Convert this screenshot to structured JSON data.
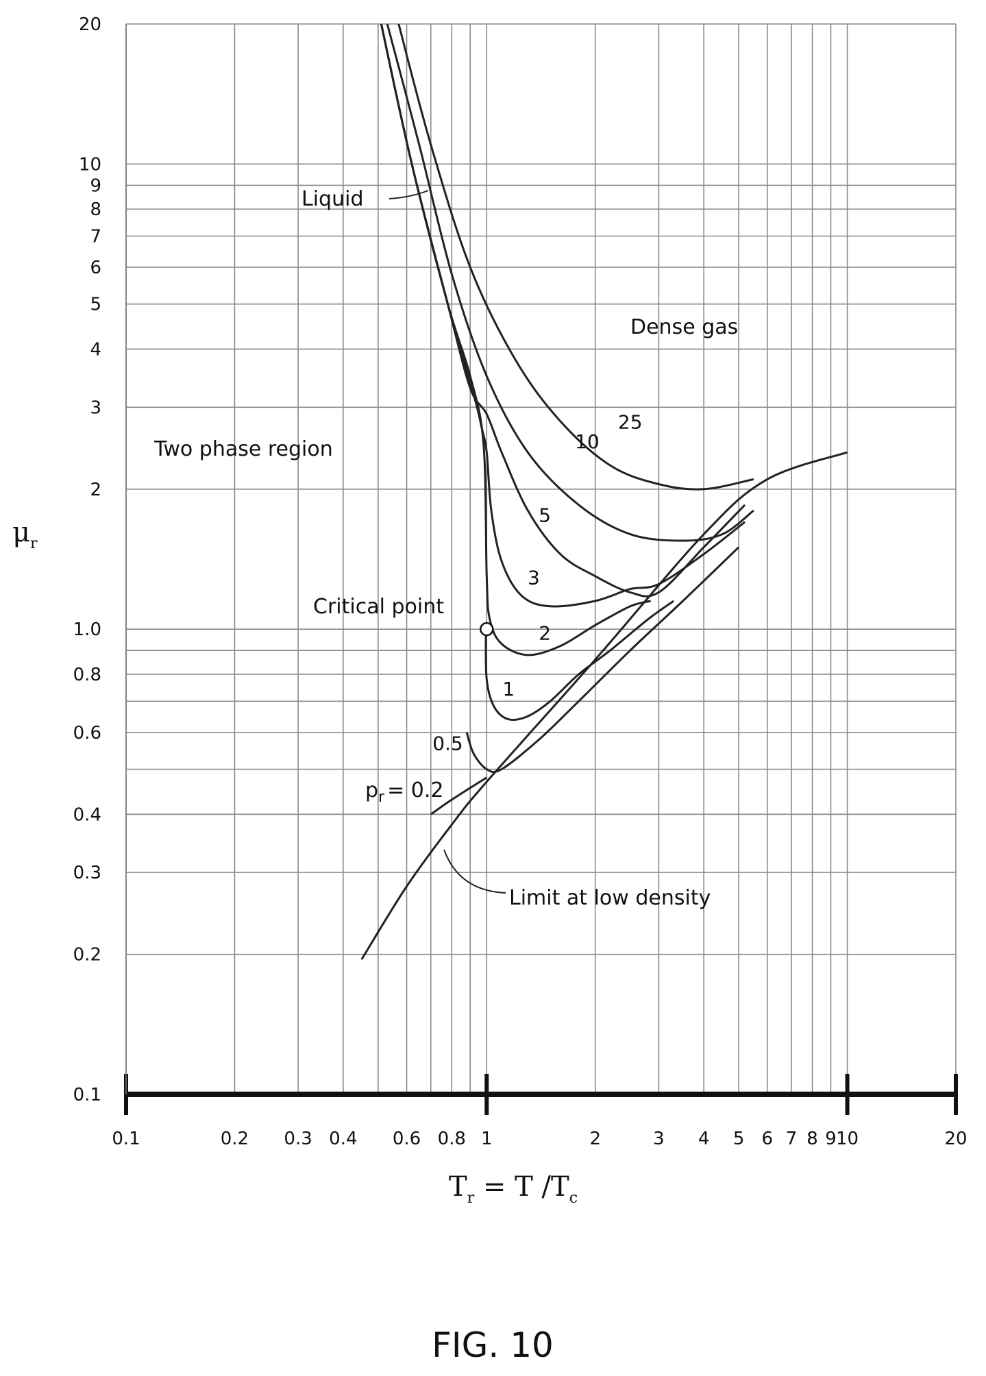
{
  "chart_data": {
    "type": "line",
    "x_scale": "log",
    "y_scale": "log",
    "xlim": [
      0.1,
      20
    ],
    "ylim": [
      0.1,
      20
    ],
    "grid": true,
    "x_ticks": [
      0.1,
      0.2,
      0.3,
      0.4,
      0.6,
      0.8,
      1,
      2,
      3,
      4,
      5,
      6,
      7,
      8,
      9,
      10,
      20
    ],
    "x_tick_labels": [
      "0.1",
      "0.2",
      "0.3",
      "0.4",
      "0.6",
      "0.8",
      "1",
      "2",
      "3",
      "4",
      "5",
      "6",
      "7",
      "8",
      "9",
      "10",
      "20"
    ],
    "y_ticks": [
      0.1,
      0.2,
      0.3,
      0.4,
      0.6,
      0.8,
      1.0,
      2,
      3,
      4,
      5,
      6,
      7,
      8,
      9,
      10,
      20
    ],
    "y_tick_labels": [
      "0.1",
      "0.2",
      "0.3",
      "0.4",
      "0.6",
      "0.8",
      "1.0",
      "2",
      "3",
      "4",
      "5",
      "6",
      "7",
      "8",
      "9",
      "10",
      "20"
    ],
    "xlabel": {
      "main": "T",
      "sub": "r",
      "rest": " = T /T",
      "sub2": "c"
    },
    "ylabel": {
      "main": "μ",
      "sub": "r"
    },
    "series": [
      {
        "name": "25",
        "points": [
          [
            0.57,
            20
          ],
          [
            0.7,
            11
          ],
          [
            0.9,
            6
          ],
          [
            1.2,
            3.8
          ],
          [
            1.6,
            2.8
          ],
          [
            2.2,
            2.25
          ],
          [
            3,
            2.05
          ],
          [
            4,
            2.0
          ],
          [
            5.5,
            2.1
          ]
        ]
      },
      {
        "name": "10",
        "points": [
          [
            0.53,
            20
          ],
          [
            0.65,
            11
          ],
          [
            0.8,
            5.8
          ],
          [
            1.0,
            3.5
          ],
          [
            1.3,
            2.4
          ],
          [
            1.8,
            1.85
          ],
          [
            2.5,
            1.6
          ],
          [
            3.5,
            1.55
          ],
          [
            4.5,
            1.6
          ],
          [
            5.5,
            1.8
          ]
        ]
      },
      {
        "name": "5",
        "points": [
          [
            0.51,
            20
          ],
          [
            0.62,
            10
          ],
          [
            0.78,
            5
          ],
          [
            0.9,
            3.3
          ],
          [
            1.0,
            2.9
          ],
          [
            1.1,
            2.4
          ],
          [
            1.3,
            1.8
          ],
          [
            1.6,
            1.45
          ],
          [
            2.0,
            1.3
          ],
          [
            2.5,
            1.2
          ],
          [
            3.0,
            1.2
          ],
          [
            4.0,
            1.5
          ],
          [
            5.2,
            1.85
          ]
        ]
      },
      {
        "name": "3",
        "points": [
          [
            0.51,
            20
          ],
          [
            0.62,
            10
          ],
          [
            0.78,
            5
          ],
          [
            0.92,
            3.2
          ],
          [
            0.97,
            2.7
          ],
          [
            1.0,
            2.4
          ],
          [
            1.03,
            1.8
          ],
          [
            1.1,
            1.4
          ],
          [
            1.25,
            1.18
          ],
          [
            1.5,
            1.12
          ],
          [
            2.0,
            1.15
          ],
          [
            2.5,
            1.22
          ],
          [
            3.0,
            1.25
          ],
          [
            4.0,
            1.45
          ],
          [
            5.2,
            1.7
          ]
        ]
      },
      {
        "name": "2",
        "points": [
          [
            0.51,
            20
          ],
          [
            0.62,
            10
          ],
          [
            0.78,
            5
          ],
          [
            0.9,
            3.5
          ],
          [
            0.98,
            2.5
          ],
          [
            1.0,
            1.3
          ],
          [
            1.02,
            1.05
          ],
          [
            1.1,
            0.93
          ],
          [
            1.3,
            0.88
          ],
          [
            1.6,
            0.92
          ],
          [
            2.0,
            1.02
          ],
          [
            2.5,
            1.12
          ],
          [
            2.85,
            1.15
          ]
        ]
      },
      {
        "name": "1",
        "points": [
          [
            0.995,
            1.0
          ],
          [
            1.0,
            0.78
          ],
          [
            1.05,
            0.68
          ],
          [
            1.15,
            0.64
          ],
          [
            1.3,
            0.65
          ],
          [
            1.5,
            0.7
          ],
          [
            1.8,
            0.8
          ],
          [
            2.2,
            0.9
          ],
          [
            2.8,
            1.05
          ],
          [
            3.3,
            1.15
          ]
        ]
      },
      {
        "name": "0.5",
        "points": [
          [
            0.88,
            0.6
          ],
          [
            0.92,
            0.54
          ],
          [
            1.0,
            0.5
          ],
          [
            1.1,
            0.5
          ],
          [
            1.4,
            0.58
          ],
          [
            1.8,
            0.7
          ],
          [
            2.5,
            0.9
          ],
          [
            3.5,
            1.15
          ],
          [
            5,
            1.5
          ]
        ]
      },
      {
        "name": "0.2",
        "points": [
          [
            0.7,
            0.4
          ],
          [
            0.8,
            0.43
          ],
          [
            1.0,
            0.48
          ]
        ]
      },
      {
        "name": "Limit at low density",
        "points": [
          [
            0.45,
            0.195
          ],
          [
            0.6,
            0.28
          ],
          [
            0.8,
            0.38
          ],
          [
            1.0,
            0.47
          ],
          [
            2,
            0.86
          ],
          [
            4,
            1.6
          ],
          [
            6,
            2.1
          ],
          [
            10,
            2.4
          ]
        ]
      }
    ],
    "critical_point": {
      "x": 1,
      "y": 1
    },
    "annotations": {
      "liquid": "Liquid",
      "dense_gas": "Dense gas",
      "two_phase": "Two phase region",
      "critical_point": "Critical point",
      "low_density": "Limit at low density",
      "pr_label": "= 0.2",
      "pr_main": "p",
      "pr_sub": "r"
    }
  },
  "caption": "FIG. 10"
}
